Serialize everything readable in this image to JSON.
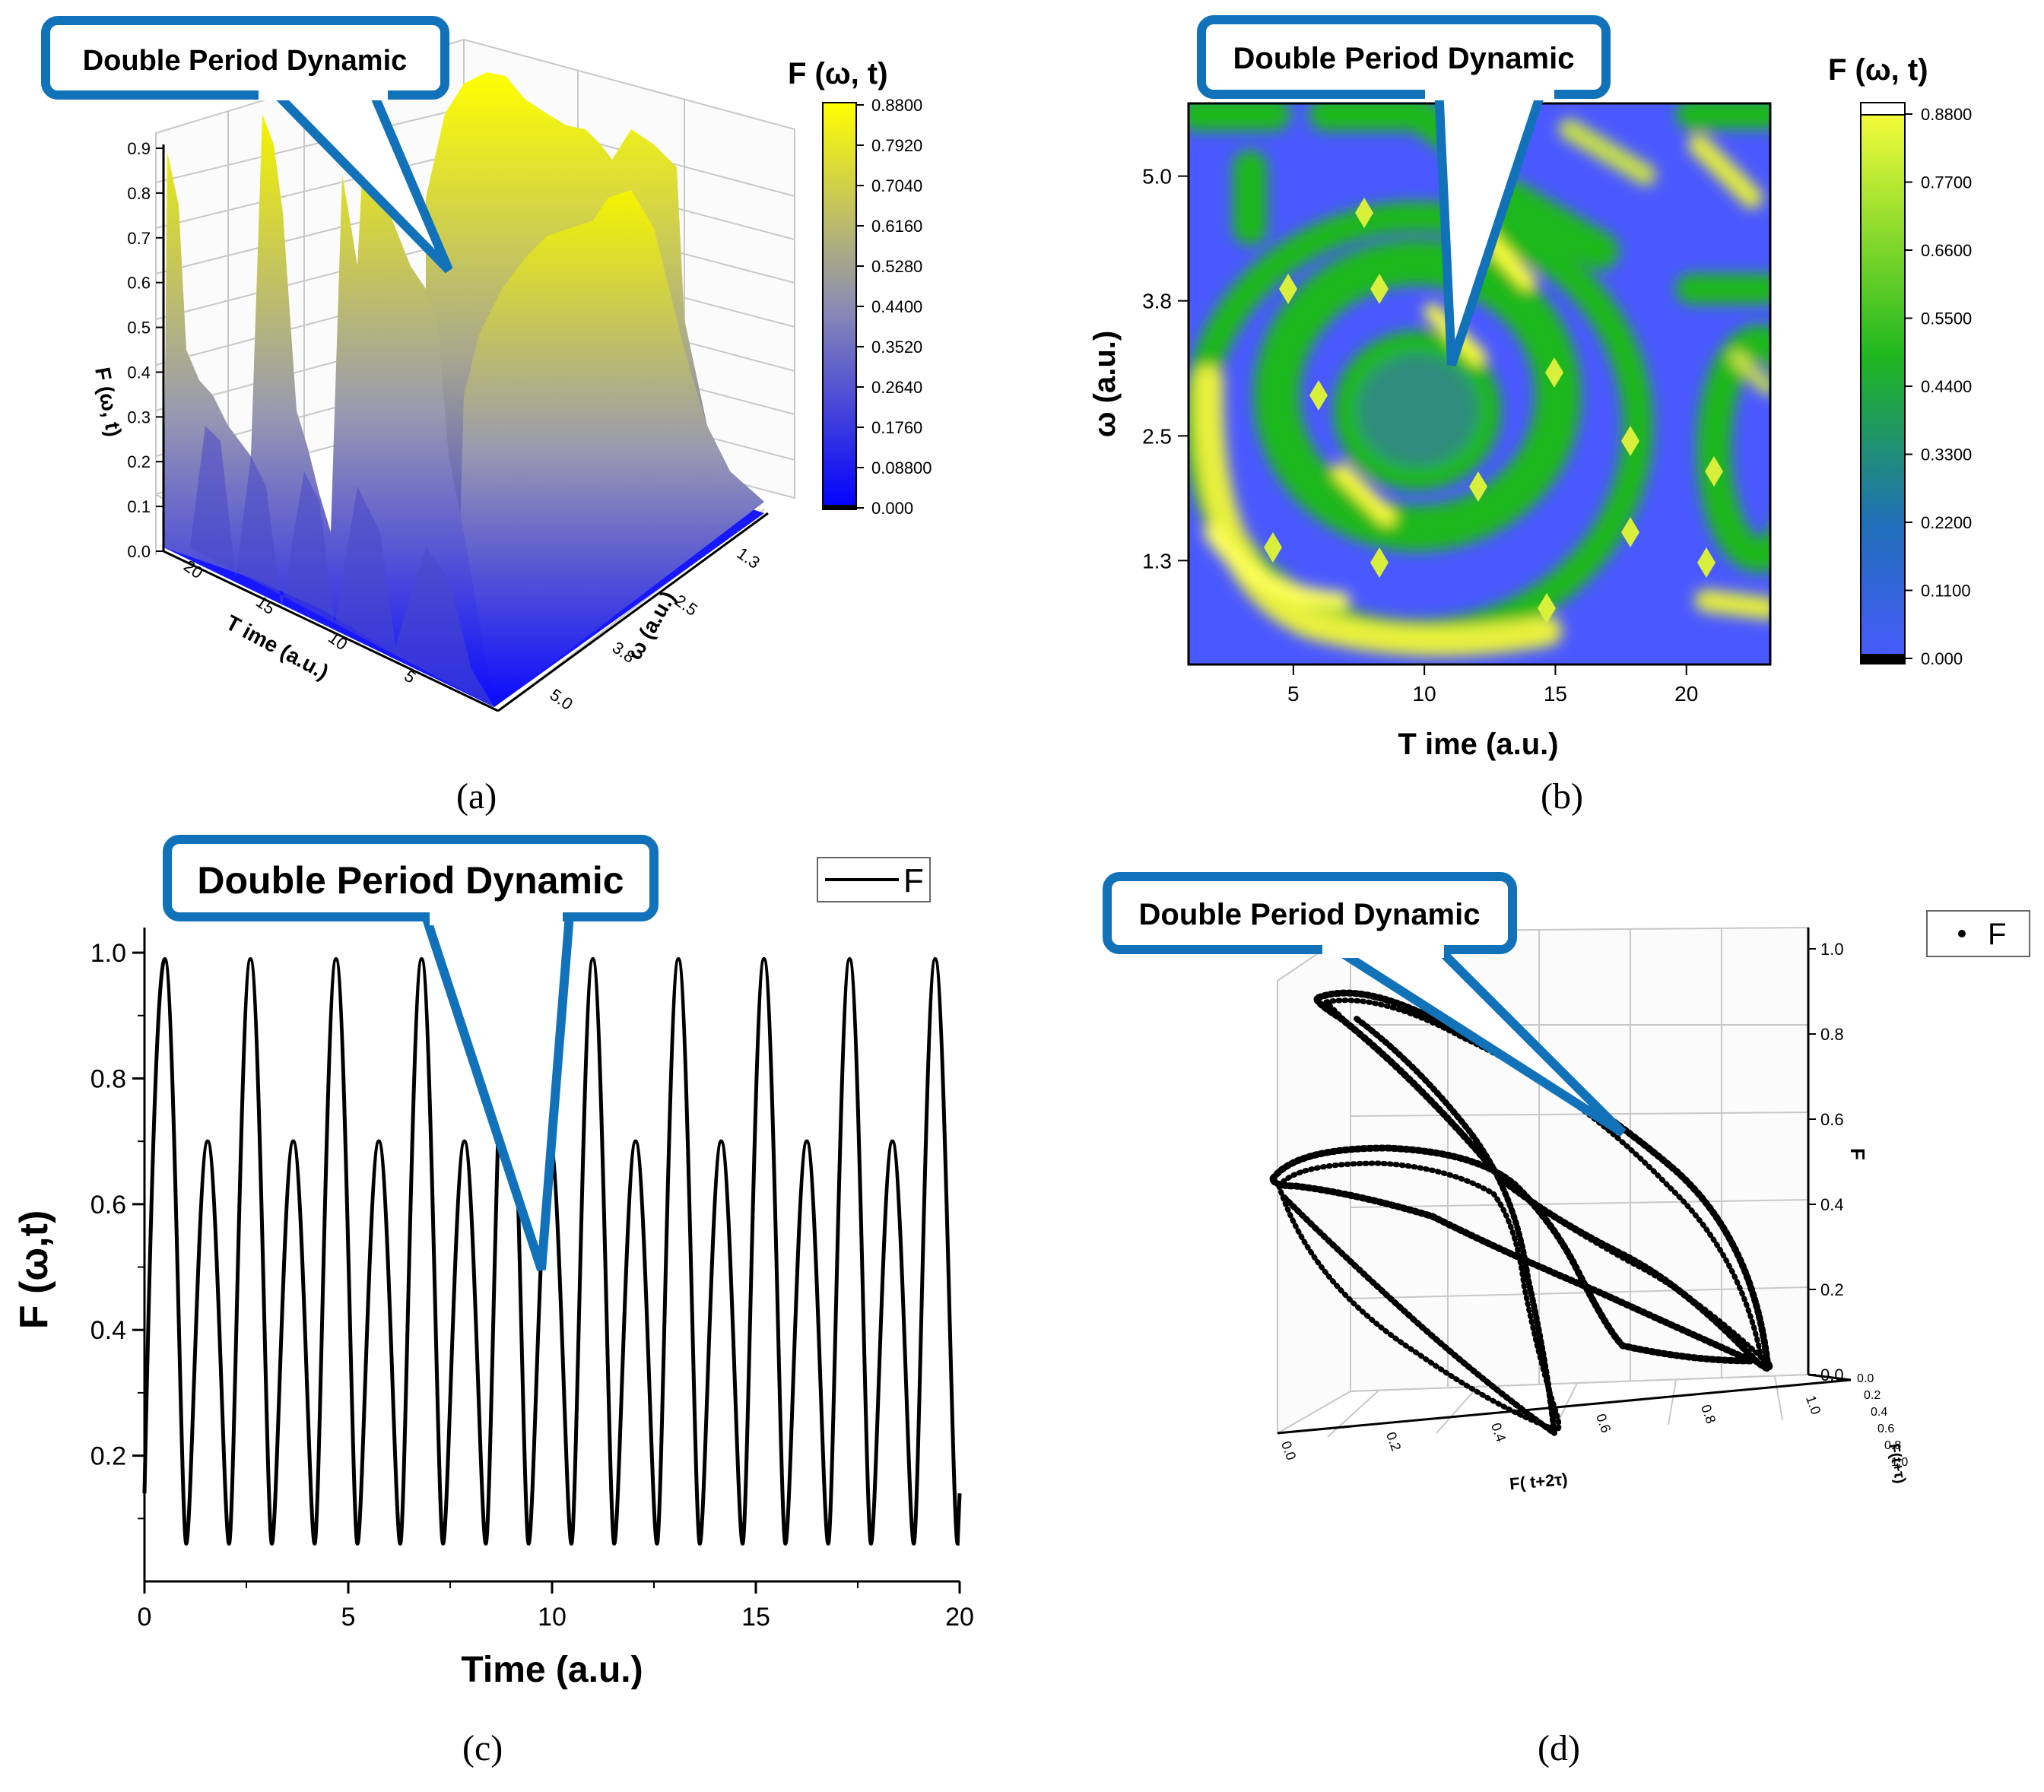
{
  "callout_label": "Double Period Dynamic",
  "colors": {
    "callout_border": "#1272b9",
    "surface_low": "#0000ff",
    "surface_mid": "#8c8cb4",
    "surface_high": "#ffff00",
    "map_low": "#4a59ff",
    "map_mid": "#1fb81f",
    "map_high": "#ffff3c",
    "line": "#000000"
  },
  "chart_data": [
    {
      "id": "a",
      "type": "surface3d",
      "caption": "(a)",
      "zlabel": "F (ω, t)",
      "xlabel": "T ime (a.u.)",
      "ylabel": "ω (a.u.)",
      "z_ticks": [
        "0.0",
        "0.1",
        "0.2",
        "0.3",
        "0.4",
        "0.5",
        "0.6",
        "0.7",
        "0.8",
        "0.9"
      ],
      "t_ticks": [
        "20",
        "15",
        "10",
        "5"
      ],
      "w_ticks": [
        "1.3",
        "2.5",
        "3.8",
        "5.0"
      ],
      "zlim": [
        0,
        0.9
      ],
      "colorbar": {
        "title": "F (ω, t)",
        "ticks": [
          "0.8800",
          "0.7920",
          "0.7040",
          "0.6160",
          "0.5280",
          "0.4400",
          "0.3520",
          "0.2640",
          "0.1760",
          "0.08800",
          "0.000"
        ],
        "range": [
          0,
          0.88
        ]
      }
    },
    {
      "id": "b",
      "type": "heatmap",
      "caption": "(b)",
      "xlabel": "T ime (a.u.)",
      "ylabel": "ω (a.u.)",
      "x_ticks": [
        "5",
        "10",
        "15",
        "20"
      ],
      "y_ticks": [
        "5.0",
        "3.8",
        "2.5",
        "1.3"
      ],
      "xlim": [
        1,
        23.2
      ],
      "ylim": [
        0.3,
        5.7
      ],
      "colorbar": {
        "title": "F (ω, t)",
        "ticks": [
          "0.8800",
          "0.7700",
          "0.6600",
          "0.5500",
          "0.4400",
          "0.3300",
          "0.2200",
          "0.1100",
          "0.000"
        ],
        "range": [
          0,
          0.88
        ]
      }
    },
    {
      "id": "c",
      "type": "line",
      "caption": "(c)",
      "xlabel": "Time (a.u.)",
      "ylabel": "F (ω,t)",
      "x_ticks": [
        "0",
        "5",
        "10",
        "15",
        "20"
      ],
      "y_ticks": [
        "0.2",
        "0.4",
        "0.6",
        "0.8",
        "1.0"
      ],
      "xlim": [
        0,
        20
      ],
      "ylim": [
        0,
        1.04
      ],
      "legend": "F",
      "series": [
        {
          "name": "F",
          "peaks_high_t": [
            0.5,
            2.6,
            4.7,
            6.8,
            8.9,
            11.0,
            13.1,
            15.2,
            17.3,
            19.4
          ],
          "peaks_low_t": [
            1.55,
            3.65,
            5.75,
            7.85,
            9.95,
            12.05,
            14.15,
            16.25,
            18.35
          ],
          "peak_high": 0.99,
          "peak_low": 0.7,
          "trough": 0.06
        }
      ]
    },
    {
      "id": "d",
      "type": "scatter3d",
      "caption": "(d)",
      "zlabel": "F",
      "xlabel": "F( t+2τ)",
      "ylabel": "F(t+τ)",
      "z_ticks": [
        "0.0",
        "0.2",
        "0.4",
        "0.6",
        "0.8",
        "1.0"
      ],
      "x_ticks": [
        "0.0",
        "0.2",
        "0.4",
        "0.6",
        "0.8",
        "1.0"
      ],
      "y_ticks": [
        "0.0",
        "0.2",
        "0.4",
        "0.6",
        "0.8",
        "1.0"
      ],
      "legend": "F"
    }
  ]
}
